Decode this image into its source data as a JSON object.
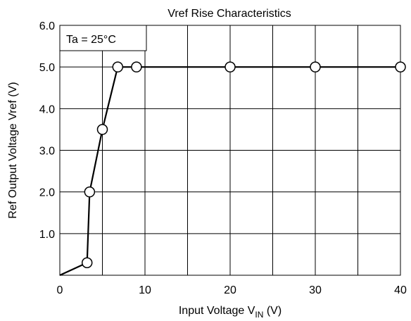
{
  "chart_data": {
    "type": "line",
    "title": "Vref Rise Characteristics",
    "xlabel": {
      "main": "Input Voltage V",
      "subscript": "IN",
      "unit": " (V)"
    },
    "ylabel": "Ref Output Voltage Vref (V)",
    "annotation": "Ta = 25°C",
    "xlim": [
      0,
      40
    ],
    "ylim": [
      0,
      6
    ],
    "x_ticks": [
      0,
      10,
      20,
      30,
      40
    ],
    "x_tick_labels": [
      "0",
      "10",
      "20",
      "30",
      "40"
    ],
    "y_ticks": [
      1,
      2,
      3,
      4,
      5,
      6
    ],
    "y_tick_labels": [
      "1.0",
      "2.0",
      "3.0",
      "4.0",
      "5.0",
      "6.0"
    ],
    "grid": {
      "x_step": 5,
      "y_step": 1,
      "on": true
    },
    "line": [
      [
        0,
        0
      ],
      [
        3.2,
        0.3
      ],
      [
        3.5,
        2.0
      ],
      [
        5.0,
        3.5
      ],
      [
        6.8,
        5.0
      ],
      [
        40,
        5.0
      ]
    ],
    "markers": [
      [
        3.2,
        0.3
      ],
      [
        3.5,
        2.0
      ],
      [
        5.0,
        3.5
      ],
      [
        6.8,
        5.0
      ],
      [
        9.0,
        5.0
      ],
      [
        20,
        5.0
      ],
      [
        30,
        5.0
      ],
      [
        40,
        5.0
      ]
    ],
    "colors": {
      "line": "#000000",
      "marker_fill": "#ffffff",
      "grid": "#000000"
    }
  }
}
